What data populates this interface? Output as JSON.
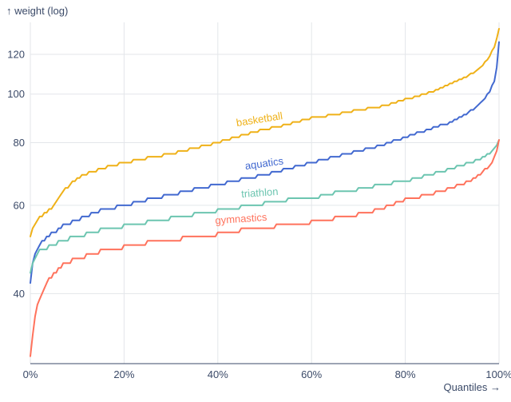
{
  "page": {
    "background": "#ffffff",
    "text_color": "#3b4a68",
    "grid_color": "#e3e6ea",
    "axis_color": "#3b4a68"
  },
  "chart_data": {
    "type": "line",
    "title": "",
    "ylabel": "↑ weight (log)",
    "xlabel": "Quantiles →",
    "y_scale": "log",
    "y_domain": [
      29,
      139
    ],
    "x_range": [
      0,
      100
    ],
    "grid": true,
    "legend": "inline-labels",
    "x_ticks": [
      0,
      20,
      40,
      60,
      80,
      100
    ],
    "x_tick_suffix": "%",
    "y_ticks": [
      40,
      60,
      80,
      100,
      120
    ],
    "quantiles": [
      0,
      0.5,
      1,
      2,
      3,
      5,
      7,
      10,
      15,
      20,
      25,
      30,
      35,
      40,
      45,
      50,
      55,
      60,
      65,
      70,
      75,
      80,
      85,
      90,
      93,
      95,
      97,
      98,
      99,
      99.5,
      100
    ],
    "series": [
      {
        "name": "basketball",
        "color": "#efb118",
        "label_at": 49,
        "label_rotate": -9,
        "values": [
          52,
          54,
          55,
          56.5,
          57.5,
          60,
          64,
          68,
          71,
          73,
          74.5,
          76,
          78,
          80,
          82.5,
          85,
          87,
          89.5,
          91,
          93,
          94.5,
          97.5,
          100.5,
          105,
          108,
          111,
          115.5,
          119,
          124,
          129,
          135
        ]
      },
      {
        "name": "aquatics",
        "color": "#4269d0",
        "label_at": 50,
        "label_rotate": -8,
        "values": [
          42,
          46,
          48,
          50,
          51,
          53,
          54.5,
          56,
          58.5,
          60,
          61.5,
          63,
          64.5,
          66,
          67.5,
          69,
          71,
          73,
          75,
          77,
          79,
          82,
          85,
          88,
          91,
          94,
          98,
          101,
          106,
          113,
          127
        ]
      },
      {
        "name": "triathlon",
        "color": "#6cc5b0",
        "label_at": 49,
        "label_rotate": -4,
        "values": [
          44,
          46,
          47,
          48.5,
          49,
          50,
          51,
          52,
          53.5,
          54.5,
          55.5,
          56.5,
          57.5,
          58.5,
          59.5,
          60.5,
          61.5,
          62,
          63.5,
          64.5,
          66,
          67,
          69,
          71,
          72.5,
          73.5,
          75,
          76,
          77.5,
          79,
          81
        ]
      },
      {
        "name": "gymnastics",
        "color": "#ff725c",
        "label_at": 45,
        "label_rotate": -4,
        "values": [
          30,
          33,
          36,
          39,
          41,
          44,
          45.5,
          47,
          48.5,
          49.5,
          50.5,
          51,
          52,
          52.5,
          53.5,
          54,
          55,
          55.5,
          56.5,
          57.5,
          59,
          61.5,
          63,
          65,
          66.5,
          68,
          70.5,
          72,
          74.5,
          77,
          80.5
        ]
      }
    ]
  }
}
